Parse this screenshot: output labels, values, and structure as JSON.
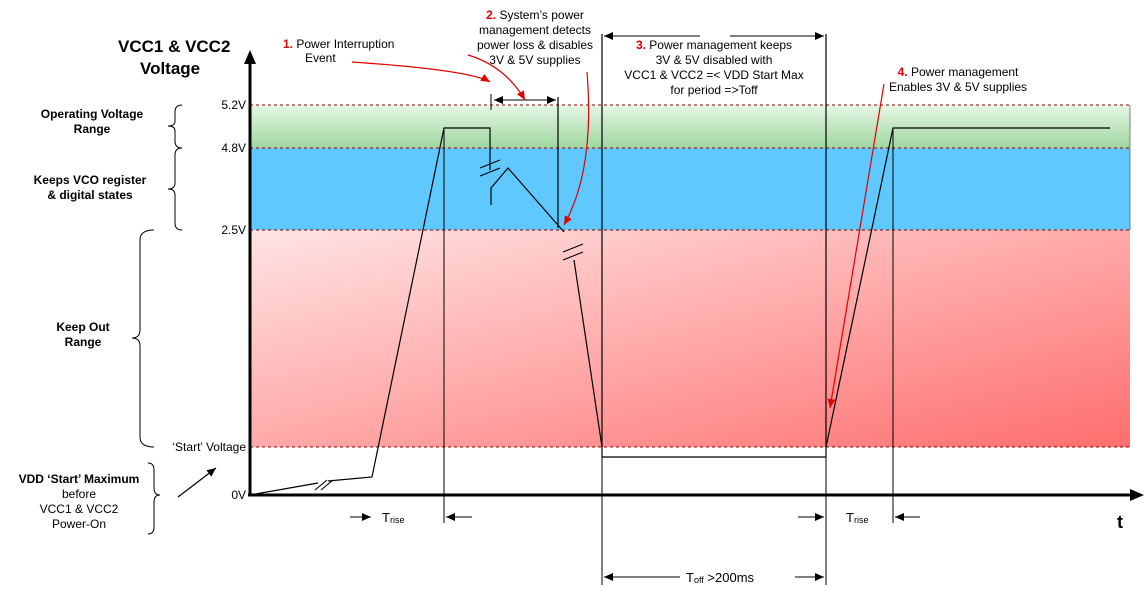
{
  "y_axis": {
    "title_line1": "VCC1 & VCC2",
    "title_line2": "Voltage"
  },
  "x_axis": {
    "label": "t"
  },
  "levels": {
    "v52": "5.2V",
    "v48": "4.8V",
    "v25": "2.5V",
    "start": "‘Start’ Voltage",
    "zero": "0V"
  },
  "regions": {
    "operating": [
      "Operating Voltage",
      "Range"
    ],
    "vco": [
      "Keeps VCO register",
      "& digital states"
    ],
    "keepout": [
      "Keep Out",
      "Range"
    ],
    "vdd": [
      "VDD ‘Start’ Maximum",
      "before",
      "VCC1 & VCC2",
      "Power-On"
    ]
  },
  "annotations": {
    "a1": {
      "num": "1.",
      "lines": [
        "Power Interruption",
        "Event"
      ]
    },
    "a2": {
      "num": "2.",
      "lines": [
        "System’s power",
        "management detects",
        "power loss & disables",
        "3V & 5V supplies"
      ]
    },
    "a3": {
      "num": "3.",
      "lines": [
        "Power management keeps",
        "3V & 5V disabled with",
        "VCC1 & VCC2 =< VDD Start Max",
        "for period =>Toff"
      ]
    },
    "a4": {
      "num": "4.",
      "lines": [
        "Power management",
        "Enables 3V & 5V supplies"
      ]
    }
  },
  "timings": {
    "trise_main": "T",
    "trise_sub": "rise",
    "toff_main": "T",
    "toff_sub": "off",
    "toff_value": " >200ms"
  },
  "colors": {
    "operating_band": "#b9e3b9",
    "vco_band": "#5ec8ff",
    "keepout_band_top": "#ffd8d8",
    "keepout_band_bottom": "#ff7a7a",
    "arrow_red": "#e00000"
  }
}
